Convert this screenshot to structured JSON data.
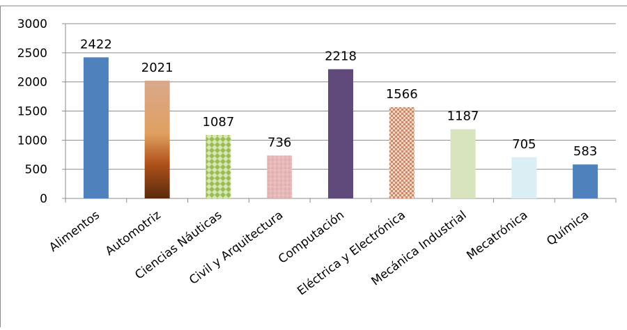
{
  "chart_data": {
    "type": "bar",
    "categories": [
      "Alimentos",
      "Automotriz",
      "Ciencias Náuticas",
      "Civil y Arquitectura",
      "Computación",
      "Eléctrica y Electrónica",
      "Mecánica Industrial",
      "Mecatrónica",
      "Química"
    ],
    "values": [
      2422,
      2021,
      1087,
      736,
      2218,
      1566,
      1187,
      705,
      583
    ],
    "yticks": [
      0,
      500,
      1000,
      1500,
      2000,
      2500,
      3000
    ],
    "ylim": [
      0,
      3000
    ],
    "grid": true,
    "legend": "none",
    "bar_colors": [
      "#4f81bd",
      "#c07040",
      "#9bbb59",
      "#e6b9b8",
      "#604a7b",
      "#d99880",
      "#d7e4bd",
      "#dbeef3",
      "#4f81bd"
    ],
    "bar_styles": [
      "solid",
      "gradient-brown",
      "pattern-green",
      "texture-pink",
      "solid",
      "checker-brown",
      "solid",
      "solid",
      "solid"
    ]
  }
}
